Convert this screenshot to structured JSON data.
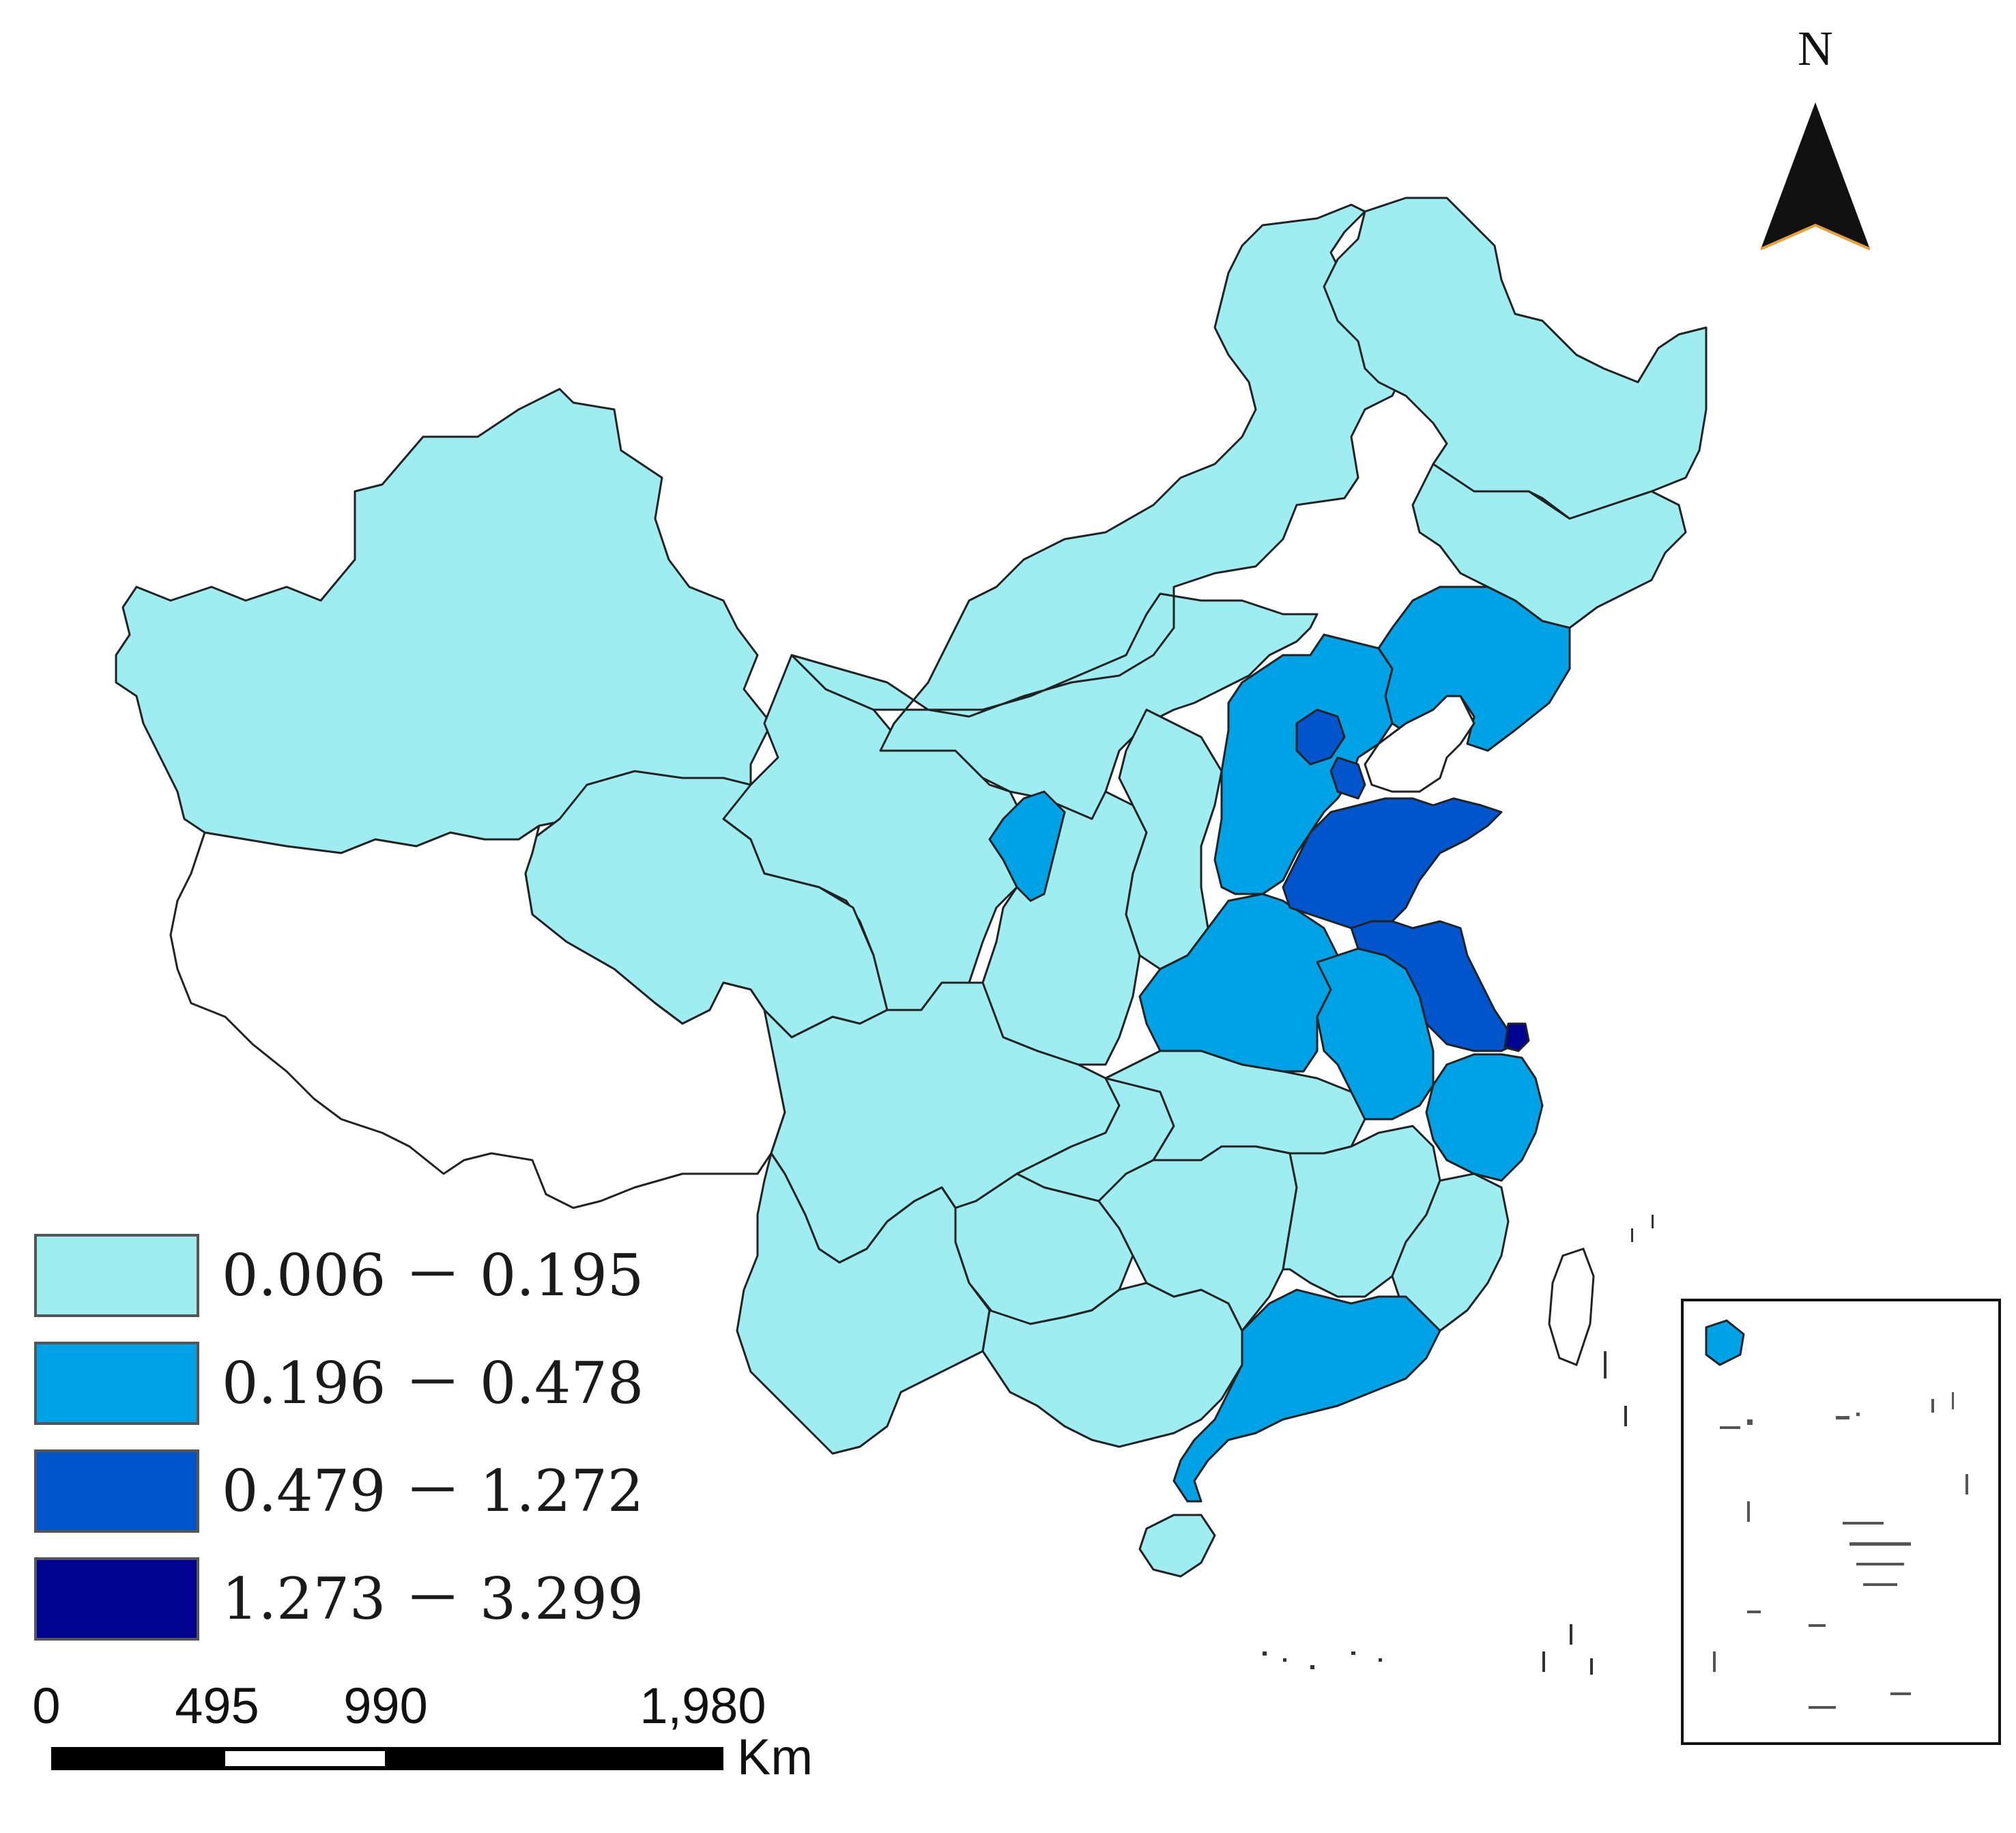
{
  "north_label": "N",
  "legend": {
    "classes": [
      {
        "label": "0.006 － 0.195",
        "color": "#9eedf0"
      },
      {
        "label": "0.196 － 0.478",
        "color": "#00a2e6"
      },
      {
        "label": "0.479 － 1.272",
        "color": "#0055cc"
      },
      {
        "label": "1.273 － 3.299",
        "color": "#00048f"
      }
    ]
  },
  "scale_bar": {
    "ticks": [
      "0",
      "495",
      "990",
      "1,980"
    ],
    "unit": "Km"
  },
  "colors": {
    "outline": "#222222",
    "no_data": "#ffffff"
  }
}
